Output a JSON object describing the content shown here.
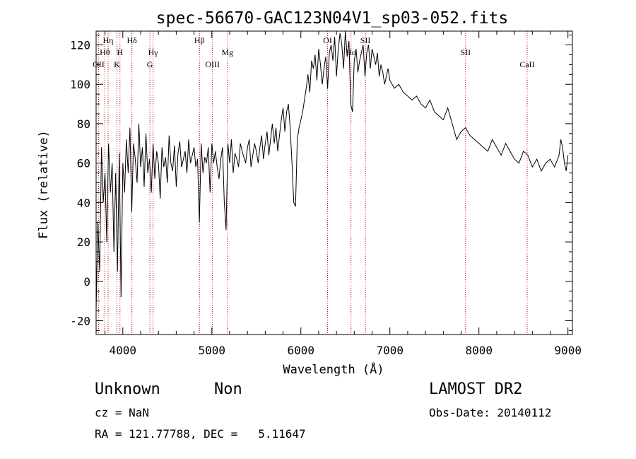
{
  "chart_data": {
    "type": "line",
    "title": "spec-56670-GAC123N04V1_sp03-052.fits",
    "xlabel": "Wavelength (Å)",
    "ylabel": "Flux (relative)",
    "xlim": [
      3700,
      9050
    ],
    "ylim": [
      -27,
      127
    ],
    "xticks": [
      4000,
      5000,
      6000,
      7000,
      8000,
      9000
    ],
    "yticks": [
      -20,
      0,
      20,
      40,
      60,
      80,
      100,
      120
    ],
    "grid": false,
    "legend": "none",
    "line_color": "#000000",
    "marker_color": "#cc0000",
    "spectral_lines": [
      {
        "label": "OII",
        "x": 3727,
        "row": 3
      },
      {
        "label": "Hθ",
        "x": 3798,
        "row": 2
      },
      {
        "label": "Hη",
        "x": 3835,
        "row": 1
      },
      {
        "label": "H",
        "x": 3968,
        "row": 2
      },
      {
        "label": "K",
        "x": 3934,
        "row": 3
      },
      {
        "label": "Hδ",
        "x": 4102,
        "row": 1
      },
      {
        "label": "Hγ",
        "x": 4340,
        "row": 2
      },
      {
        "label": "G",
        "x": 4304,
        "row": 3
      },
      {
        "label": "Hβ",
        "x": 4861,
        "row": 1
      },
      {
        "label": "OIII",
        "x": 5007,
        "row": 3
      },
      {
        "label": "Mg",
        "x": 5175,
        "row": 2
      },
      {
        "label": "OI",
        "x": 6300,
        "row": 1
      },
      {
        "label": "SII",
        "x": 6725,
        "row": 1
      },
      {
        "label": "Hα",
        "x": 6563,
        "row": 2
      },
      {
        "label": "SII",
        "x": 7850,
        "row": 2
      },
      {
        "label": "CaII",
        "x": 8542,
        "row": 3
      }
    ],
    "series": [
      {
        "x": [
          3700,
          3720,
          3740,
          3760,
          3780,
          3800,
          3820,
          3840,
          3860,
          3880,
          3900,
          3920,
          3940,
          3960,
          3980,
          4000,
          4020,
          4040,
          4060,
          4080,
          4100,
          4120,
          4140,
          4160,
          4180,
          4200,
          4220,
          4240,
          4260,
          4280,
          4300,
          4320,
          4340,
          4360,
          4380,
          4400,
          4420,
          4440,
          4460,
          4480,
          4500,
          4520,
          4540,
          4560,
          4580,
          4600,
          4620,
          4640,
          4660,
          4680,
          4700,
          4720,
          4740,
          4760,
          4780,
          4800,
          4820,
          4840,
          4860,
          4880,
          4900,
          4920,
          4940,
          4960,
          4980,
          5000,
          5020,
          5040,
          5060,
          5080,
          5100,
          5120,
          5140,
          5160,
          5180,
          5200,
          5220,
          5240,
          5260,
          5280,
          5300,
          5320,
          5340,
          5360,
          5380,
          5400,
          5420,
          5440,
          5460,
          5480,
          5500,
          5520,
          5540,
          5560,
          5580,
          5600,
          5620,
          5640,
          5660,
          5680,
          5700,
          5720,
          5740,
          5760,
          5780,
          5800,
          5820,
          5840,
          5860,
          5880,
          5900,
          5920,
          5940,
          5960,
          5980,
          6000,
          6020,
          6040,
          6060,
          6080,
          6100,
          6120,
          6140,
          6160,
          6180,
          6200,
          6220,
          6240,
          6260,
          6280,
          6300,
          6320,
          6340,
          6360,
          6380,
          6400,
          6420,
          6440,
          6460,
          6480,
          6500,
          6520,
          6540,
          6560,
          6580,
          6600,
          6620,
          6640,
          6660,
          6680,
          6700,
          6720,
          6740,
          6760,
          6780,
          6800,
          6820,
          6840,
          6860,
          6880,
          6900,
          6920,
          6940,
          6960,
          6980,
          7000,
          7050,
          7100,
          7150,
          7200,
          7250,
          7300,
          7350,
          7400,
          7450,
          7500,
          7550,
          7600,
          7650,
          7700,
          7750,
          7800,
          7850,
          7900,
          7950,
          8000,
          8050,
          8100,
          8150,
          8200,
          8250,
          8300,
          8350,
          8400,
          8450,
          8500,
          8550,
          8600,
          8650,
          8700,
          8750,
          8800,
          8850,
          8900,
          8920,
          8940,
          8960,
          8980,
          9000
        ],
        "y": [
          -15,
          30,
          5,
          68,
          40,
          55,
          20,
          70,
          45,
          60,
          15,
          55,
          5,
          65,
          -8,
          60,
          45,
          72,
          55,
          78,
          35,
          70,
          62,
          50,
          80,
          58,
          68,
          48,
          75,
          55,
          62,
          45,
          70,
          52,
          66,
          60,
          42,
          68,
          58,
          63,
          50,
          74,
          60,
          56,
          69,
          48,
          65,
          71,
          58,
          62,
          66,
          55,
          72,
          60,
          64,
          68,
          58,
          62,
          30,
          70,
          55,
          63,
          60,
          68,
          45,
          70,
          60,
          66,
          58,
          52,
          62,
          68,
          40,
          26,
          70,
          60,
          72,
          55,
          65,
          62,
          58,
          70,
          66,
          63,
          60,
          68,
          72,
          58,
          64,
          70,
          66,
          60,
          68,
          74,
          62,
          70,
          76,
          64,
          72,
          80,
          70,
          78,
          66,
          74,
          82,
          88,
          76,
          86,
          90,
          78,
          60,
          40,
          38,
          72,
          78,
          82,
          86,
          92,
          98,
          105,
          96,
          112,
          108,
          115,
          102,
          118,
          110,
          100,
          108,
          114,
          98,
          116,
          120,
          112,
          124,
          104,
          118,
          126,
          120,
          108,
          128,
          114,
          122,
          90,
          86,
          112,
          118,
          106,
          112,
          116,
          120,
          104,
          116,
          120,
          108,
          118,
          114,
          110,
          116,
          104,
          110,
          106,
          100,
          104,
          108,
          102,
          98,
          100,
          96,
          94,
          92,
          94,
          90,
          88,
          92,
          86,
          84,
          82,
          88,
          80,
          72,
          76,
          78,
          74,
          72,
          70,
          68,
          66,
          72,
          68,
          64,
          70,
          66,
          62,
          60,
          66,
          64,
          58,
          62,
          56,
          60,
          62,
          58,
          64,
          72,
          68,
          60,
          56,
          64
        ]
      }
    ]
  },
  "info": {
    "class_label": "Unknown",
    "subclass_label": "Non",
    "survey": "LAMOST DR2",
    "cz": "cz = NaN",
    "obs_date": "Obs-Date: 20140112",
    "coords": "RA = 121.77788, DEC =   5.11647"
  }
}
